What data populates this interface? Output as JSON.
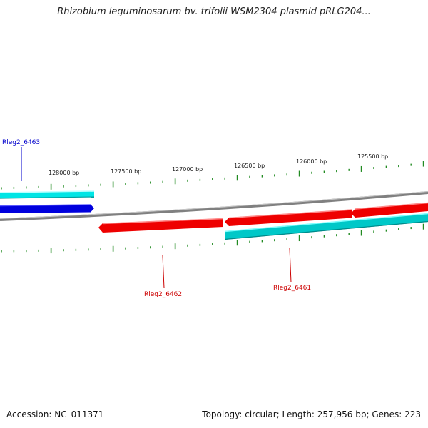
{
  "title": "Rhizobium leguminosarum bv. trifolii WSM2304 plasmid pRLG204...",
  "footer": {
    "accession": "Accession: NC_011371",
    "summary": "Topology: circular; Length: 257,956 bp; Genes: 223"
  },
  "colors": {
    "forward_gene": "#0000dd",
    "reverse_gene": "#ee0000",
    "forward_cds": "#00e5e5",
    "reverse_cds": "#00c8c8",
    "backbone": "#808080",
    "tick": "#228b22",
    "forward_label": "#0000cc",
    "reverse_label": "#cc0000"
  },
  "ruler": {
    "labels": [
      "128000 bp",
      "127500 bp",
      "127000 bp",
      "126500 bp",
      "126000 bp",
      "125500 bp"
    ]
  },
  "genes": [
    {
      "name": "Rleg2_6463",
      "strand": "forward"
    },
    {
      "name": "Rleg2_6462",
      "strand": "reverse"
    },
    {
      "name": "Rleg2_6461",
      "strand": "reverse"
    }
  ]
}
